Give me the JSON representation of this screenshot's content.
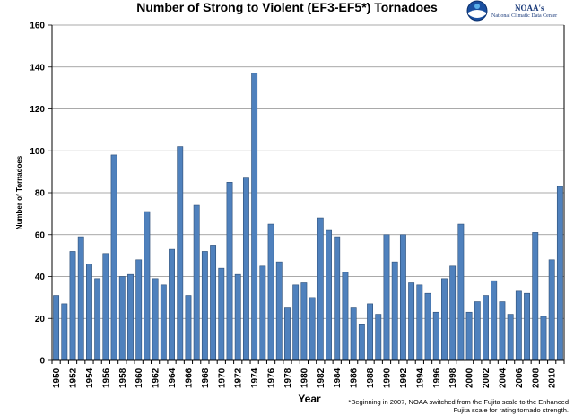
{
  "chart_data": {
    "type": "bar",
    "title": "Number of Strong to Violent (EF3-EF5*) Tornadoes",
    "xlabel": "Year",
    "ylabel": "Number of Tornadoes",
    "ylim": [
      0,
      160
    ],
    "yticks": [
      0,
      20,
      40,
      60,
      80,
      100,
      120,
      140,
      160
    ],
    "grid": true,
    "categories": [
      "1950",
      "1951",
      "1952",
      "1953",
      "1954",
      "1955",
      "1956",
      "1957",
      "1958",
      "1959",
      "1960",
      "1961",
      "1962",
      "1963",
      "1964",
      "1965",
      "1966",
      "1967",
      "1968",
      "1969",
      "1970",
      "1971",
      "1972",
      "1973",
      "1974",
      "1975",
      "1976",
      "1977",
      "1978",
      "1979",
      "1980",
      "1981",
      "1982",
      "1983",
      "1984",
      "1985",
      "1986",
      "1987",
      "1988",
      "1989",
      "1990",
      "1991",
      "1992",
      "1993",
      "1994",
      "1995",
      "1996",
      "1997",
      "1998",
      "1999",
      "2000",
      "2001",
      "2002",
      "2003",
      "2004",
      "2005",
      "2006",
      "2007",
      "2008",
      "2009",
      "2010",
      "2011"
    ],
    "tick_labels": [
      "1950",
      "1952",
      "1954",
      "1956",
      "1958",
      "1960",
      "1962",
      "1964",
      "1966",
      "1968",
      "1970",
      "1972",
      "1974",
      "1976",
      "1978",
      "1980",
      "1982",
      "1984",
      "1986",
      "1988",
      "1990",
      "1992",
      "1994",
      "1996",
      "1998",
      "2000",
      "2002",
      "2004",
      "2006",
      "2008",
      "2010"
    ],
    "values": [
      31,
      27,
      52,
      59,
      46,
      39,
      51,
      98,
      40,
      41,
      48,
      71,
      39,
      36,
      53,
      102,
      31,
      74,
      52,
      55,
      44,
      85,
      41,
      87,
      137,
      45,
      65,
      47,
      25,
      36,
      37,
      30,
      68,
      62,
      59,
      42,
      25,
      17,
      27,
      22,
      60,
      47,
      60,
      37,
      36,
      32,
      23,
      39,
      45,
      65,
      23,
      28,
      31,
      38,
      28,
      22,
      33,
      32,
      61,
      21,
      48,
      83
    ],
    "bar_color": "#4F81BD",
    "bar_edge": "#2C4D75"
  },
  "logo": {
    "text": "NOAA's",
    "subtext": "National Climatic Data Center"
  },
  "footnote": "*Beginning in 2007, NOAA switched from the Fujita scale to the Enhanced Fujita scale for rating tornado strength."
}
